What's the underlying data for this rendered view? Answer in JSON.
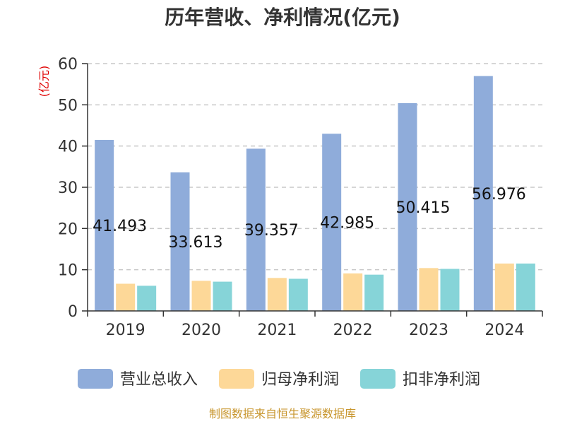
{
  "chart_data": {
    "type": "bar",
    "title": "历年营收、净利情况(亿元)",
    "ylabel": "(亿元)",
    "xlabel": "",
    "categories": [
      "2019",
      "2020",
      "2021",
      "2022",
      "2023",
      "2024"
    ],
    "ylim": [
      0,
      60
    ],
    "yticks": [
      0,
      10,
      20,
      30,
      40,
      50,
      60
    ],
    "grid": true,
    "legend_position": "bottom",
    "series": [
      {
        "name": "营业总收入",
        "values": [
          41.493,
          33.613,
          39.357,
          42.985,
          50.415,
          56.976
        ],
        "color": "#8facda",
        "labels": [
          "41.493",
          "33.613",
          "39.357",
          "42.985",
          "50.415",
          "56.976"
        ]
      },
      {
        "name": "归母净利润",
        "values": [
          6.6,
          7.3,
          8.0,
          9.1,
          10.4,
          11.5
        ],
        "color": "#fdd898"
      },
      {
        "name": "扣非净利润",
        "values": [
          6.1,
          7.1,
          7.8,
          8.8,
          10.2,
          11.5
        ],
        "color": "#86d4d8"
      }
    ]
  },
  "source_text": "制图数据来自恒生聚源数据库",
  "colors": {
    "title": "#333333",
    "ylabel": "#e00000",
    "axis": "#333333",
    "grid": "#c8c8c8",
    "source": "#c8962e"
  }
}
